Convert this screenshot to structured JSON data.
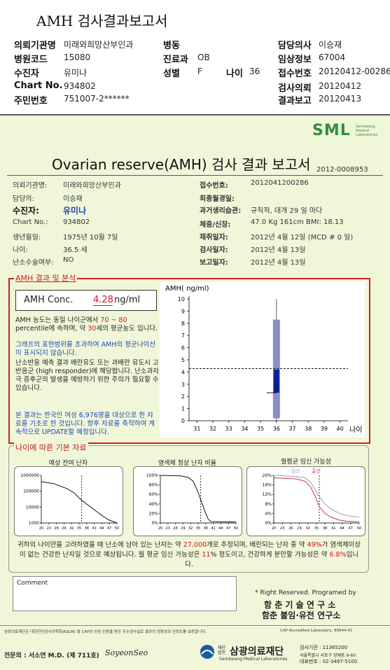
{
  "header": {
    "title": "AMH 검사결과보고서",
    "fields": {
      "institution": {
        "label": "의뢰기관명",
        "value": "미래와희망산부인과"
      },
      "ward": {
        "label": "병동"
      },
      "doctor": {
        "label": "담당의사",
        "value": "이승재"
      },
      "hospital_code": {
        "label": "병원코드",
        "value": "15080"
      },
      "department": {
        "label": "진료과",
        "value": "OB"
      },
      "clinical_info": {
        "label": "임상정보",
        "value": "67004"
      },
      "patient": {
        "label": "수진자",
        "value": "유미나"
      },
      "sex": {
        "label": "성별",
        "value": "F"
      },
      "age": {
        "label": "나이",
        "value": "36"
      },
      "receipt_no": {
        "label": "접수번호",
        "value": "20120412-00286"
      },
      "chart_no": {
        "label": "Chart No.",
        "value": "934802"
      },
      "request_date": {
        "label": "검사의뢰",
        "value": "20120412"
      },
      "resident_no": {
        "label": "주민번호",
        "value": "751007-2******"
      },
      "report_date": {
        "label": "결과보고",
        "value": "20120413"
      }
    }
  },
  "report": {
    "logo": "SML",
    "logo_sub": "Samkwang Medical Laboratories",
    "title": "Ovarian reserve(AMH) 검사 결과 보고서",
    "number": "2012-0008953",
    "left_info": [
      {
        "label": "의뢰기관명:",
        "value": "미래와희망산부인과"
      },
      {
        "label": "담당의:",
        "value": "이승재"
      },
      {
        "label": "수진자:",
        "value": "유미나"
      },
      {
        "label": "Chart No.:",
        "value": "934802"
      },
      {
        "label": "생년월일:",
        "value": "1975년 10월 7일"
      },
      {
        "label": "나이:",
        "value": "36.5 세"
      },
      {
        "label": "난소수술여부:",
        "value": "NO"
      }
    ],
    "right_info": [
      {
        "label": "접수번호:",
        "value": "2012041200286"
      },
      {
        "label": "최종월경일:"
      },
      {
        "label": "과거생리습관:",
        "value": "규칙적, 대개 29 일 마다"
      },
      {
        "label": "체중/신장:",
        "value": "47.0 Kg 161cm BMI: 18.13"
      },
      {
        "label": "채취일자:",
        "value": "2012년 4월 12일 (MCD # 0 일)"
      },
      {
        "label": "검사일자:",
        "value": "2012년 4월 13일"
      },
      {
        "label": "보고일자:",
        "value": "2012년 4월 13일"
      }
    ]
  },
  "analysis": {
    "title": "AMH 결과 및 분석",
    "conc_label": "AMH Conc.",
    "conc_value": 4.28,
    "conc_unit": "ng/ml",
    "notes": [
      {
        "parts": [
          {
            "text": "AMH 농도는 동일 나이군에서 "
          },
          {
            "text": "70 ~ 80",
            "color": "#d01818"
          },
          {
            "text": " percentile에 속하며, 약 "
          },
          {
            "text": "30",
            "color": "#d01818"
          },
          {
            "text": "세의 평균농도 입니다."
          }
        ]
      },
      {
        "parts": [
          {
            "text": "그래프의 표현범위를 초과하여 AMH의 평균나이선이 표시되지 않습니다.",
            "color": "#2244bb"
          }
        ]
      },
      {
        "parts": [
          {
            "text": "난소반응 예측 결과 배란유도 또는 과배란 유도시 고반응군 (high responder)에 해당합니다. 난소과자극 증후군의 발생을 예방하기 위한 주의가 필요할 수 있습니다."
          }
        ]
      },
      {
        "parts": [
          {
            "text": "본 결과는 한국인 여성 6,976명을 대상으로 한 자료를 기초로 한 것입니다. 향후 자료를 축적하여 계속적으로 UPDATE할 예정입니다.",
            "color": "#2244bb"
          }
        ]
      }
    ],
    "chart": {
      "ylabel": "AMH( ng/ml)",
      "xlabel": "나이",
      "ylim": [
        0,
        10
      ],
      "yticks": [
        0,
        1,
        2,
        3,
        4,
        5,
        6,
        7,
        8,
        9,
        10
      ],
      "xlim": [
        30.5,
        40.5
      ],
      "xticks": [
        31,
        32,
        33,
        34,
        35,
        36,
        37,
        38,
        39,
        40
      ],
      "patient_age": 36,
      "range": [
        0.2,
        8.3
      ],
      "box": [
        2.3,
        4.2
      ],
      "range_color": "#8a8fc8",
      "box_color": "#0a1e9a"
    }
  },
  "basics": {
    "title": "나이에 따른 기본 자료",
    "charts": [
      {
        "title": "예상 잔여 난자",
        "log": true,
        "ylim": [
          1000,
          1000000
        ],
        "yticks": [
          1000,
          10000,
          100000,
          1000000
        ],
        "xlim": [
          20,
          50
        ],
        "xticks": [
          20,
          23,
          26,
          29,
          32,
          35,
          38,
          41,
          44,
          47,
          50
        ],
        "marker_x": 36,
        "series": [
          {
            "color": "#111",
            "x": [
              20,
              25,
              30,
              33,
              36,
              40,
              44,
              47,
              50
            ],
            "values": [
              400000,
              300000,
              150000,
              80000,
              27000,
              9000,
              3000,
              1500,
              1000
            ]
          }
        ]
      },
      {
        "title": "염색체 정상 난자 비율",
        "ylim": [
          0,
          100
        ],
        "yticks": [
          {
            "value": 0,
            "label": "0%"
          },
          {
            "value": 20,
            "label": "20%"
          },
          {
            "value": 40,
            "label": "40%"
          },
          {
            "value": 60,
            "label": "60%"
          },
          {
            "value": 80,
            "label": "80%"
          },
          {
            "value": 100,
            "label": "100%"
          }
        ],
        "xlim": [
          20,
          50
        ],
        "xticks": [
          20,
          23,
          26,
          29,
          32,
          35,
          38,
          41,
          44,
          47,
          50
        ],
        "marker_x": 36,
        "series": [
          {
            "color": "#111",
            "x": [
              20,
              28,
              31,
              33,
              35,
              36,
              37,
              38,
              39,
              40,
              50
            ],
            "values": [
              100,
              99,
              96,
              88,
              64,
              49,
              35,
              20,
              8,
              3,
              2
            ]
          }
        ]
      },
      {
        "title": "월평균 임신 가능성",
        "ylim": [
          0,
          20
        ],
        "yticks": [
          {
            "value": 0,
            "label": "0%"
          },
          {
            "value": 4,
            "label": "4%"
          },
          {
            "value": 8,
            "label": "8%"
          },
          {
            "value": 12,
            "label": "12%"
          },
          {
            "value": 16,
            "label": "16%"
          },
          {
            "value": 20,
            "label": "20%"
          }
        ],
        "xlim": [
          20,
          50
        ],
        "xticks": [
          20,
          23,
          26,
          29,
          32,
          35,
          38,
          41,
          44,
          47,
          50
        ],
        "marker_x": 36,
        "series": [
          {
            "name": "- 임신 -",
            "color": "#9a9ab8",
            "x": [
              20,
              28,
              31,
              33,
              35,
              36,
              38,
              40,
              43,
              46,
              50
            ],
            "values": [
              20,
              19.5,
              19,
              17,
              13,
              11,
              8,
              6,
              4,
              3,
              2.5
            ]
          },
          {
            "name": "출산",
            "color": "#c0306e",
            "x": [
              20,
              28,
              31,
              33,
              35,
              36,
              38,
              40,
              43,
              46,
              50
            ],
            "values": [
              19,
              18.5,
              17.5,
              15,
              10,
              6.8,
              4,
              2.5,
              1.2,
              0.7,
              0.5
            ]
          }
        ]
      }
    ],
    "summary": [
      {
        "text": "귀하의 나이만을 고려하였을 때 난소에 남아 있는 난자는 약 "
      },
      {
        "text": "27,000",
        "color": "#d01818"
      },
      {
        "text": "개로 추정되며, 배란되는 난자 중 약 "
      },
      {
        "text": "49%",
        "color": "#d01818"
      },
      {
        "text": "가 염색체이상이 없는 건강한 난자일 것으로 예상됩니다. 월 평균 임신 가능성은 "
      },
      {
        "text": "11",
        "color": "#d01818"
      },
      {
        "text": "% 정도이고, 건강하게 분만할 가능성은 약 "
      },
      {
        "text": "6.8%",
        "color": "#d01818"
      },
      {
        "text": "입니다."
      }
    ]
  },
  "comment": {
    "label": "Comment"
  },
  "credits": {
    "rights": "* Right Reserved. Programed by",
    "lab1": "함 춘 기 술 연 구 소",
    "lab2": "함춘 불임·유전 연구소"
  },
  "footer": {
    "accreditation": "삼광의료재단은 대한진단검사의학회(KSLM) 및 CAP의 신임 인증을 받은 우수검사실로 결과의 정확성과 신뢰도를 보증합니다.",
    "cap": "CAP Accredited Laboratory, 89944-01",
    "specialist": "전문의 : 서소연 M.D. (제 711호)",
    "signature": "SoyeonSeo",
    "foundation_prefix": "재단법인",
    "foundation": "삼광의료재단",
    "foundation_en": "Samkwang Medical Laboratories",
    "institution_no": "검사기관 : 11365200",
    "address": "서울특별시 서초구 양재동 9-60",
    "phone": "대표번호 : 02-3497-5100"
  }
}
